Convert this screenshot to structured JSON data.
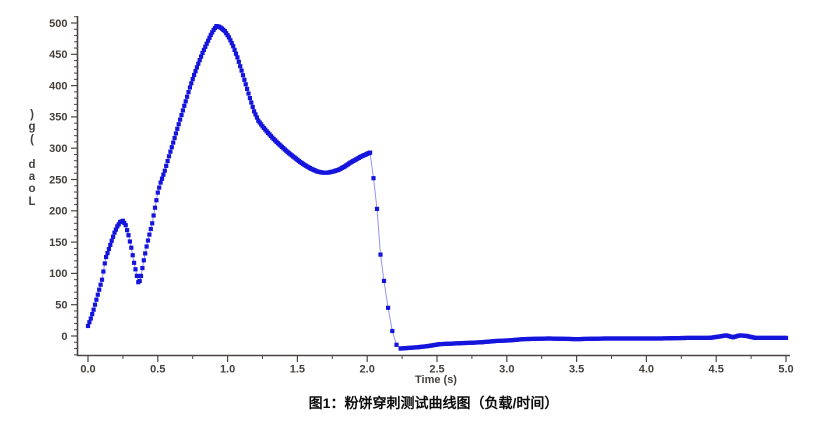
{
  "figure": {
    "caption": "图1：粉饼穿刺测试曲线图（负载/时间）"
  },
  "chart_data": {
    "type": "scatter",
    "title": "",
    "xlabel": "Time (s)",
    "ylabel": "Load (g)",
    "ylabel_stacked_bottom_up": true,
    "xlim": [
      0,
      5
    ],
    "ylim": [
      0,
      500
    ],
    "x_tick_labels": [
      "0.0",
      "0.5",
      "1.0",
      "1.5",
      "2.0",
      "2.5",
      "3.0",
      "3.5",
      "4.0",
      "4.5",
      "5.0"
    ],
    "y_tick_labels": [
      "0",
      "50",
      "100",
      "150",
      "200",
      "250",
      "300",
      "350",
      "400",
      "450",
      "500"
    ],
    "x_minor_step": 0.25,
    "y_minor_step": 10,
    "grid": false,
    "legend": "none",
    "colors": {
      "marker": "#1414dd",
      "line": "#9595ee",
      "axis": "#4a4542",
      "tick_text": "#44403d",
      "caption": "#0d0d0d",
      "background": "#ffffff"
    },
    "series": [
      {
        "name": "load",
        "marker": "square",
        "segments": [
          {
            "dt": 0.01,
            "points": [
              [
                0.0,
                16
              ],
              [
                0.02,
                28
              ],
              [
                0.04,
                42
              ],
              [
                0.06,
                58
              ],
              [
                0.08,
                74
              ],
              [
                0.1,
                90
              ],
              [
                0.11,
                103
              ],
              [
                0.12,
                116
              ],
              [
                0.13,
                126
              ],
              [
                0.15,
                139
              ],
              [
                0.17,
                152
              ],
              [
                0.19,
                165
              ],
              [
                0.21,
                175
              ],
              [
                0.23,
                182
              ],
              [
                0.25,
                184
              ],
              [
                0.27,
                177
              ],
              [
                0.29,
                161
              ],
              [
                0.31,
                141
              ],
              [
                0.33,
                117
              ],
              [
                0.35,
                96
              ],
              [
                0.36,
                86
              ],
              [
                0.37,
                88
              ],
              [
                0.38,
                96
              ],
              [
                0.4,
                121
              ],
              [
                0.42,
                143
              ],
              [
                0.44,
                162
              ],
              [
                0.46,
                180
              ],
              [
                0.48,
                205
              ],
              [
                0.5,
                229
              ],
              [
                0.52,
                245
              ],
              [
                0.55,
                264
              ],
              [
                0.58,
                287
              ],
              [
                0.61,
                309
              ],
              [
                0.64,
                331
              ],
              [
                0.67,
                353
              ],
              [
                0.7,
                375
              ],
              [
                0.73,
                397
              ],
              [
                0.76,
                417
              ],
              [
                0.79,
                435
              ],
              [
                0.82,
                452
              ],
              [
                0.85,
                467
              ],
              [
                0.88,
                481
              ],
              [
                0.9,
                489
              ],
              [
                0.92,
                495
              ],
              [
                0.94,
                494
              ],
              [
                0.96,
                491
              ],
              [
                0.98,
                487
              ],
              [
                1.01,
                477
              ],
              [
                1.04,
                463
              ],
              [
                1.07,
                445
              ],
              [
                1.1,
                424
              ],
              [
                1.13,
                402
              ],
              [
                1.16,
                380
              ],
              [
                1.19,
                359
              ],
              [
                1.22,
                344
              ],
              [
                1.25,
                335
              ],
              [
                1.28,
                327
              ],
              [
                1.32,
                317
              ],
              [
                1.36,
                308
              ],
              [
                1.4,
                300
              ],
              [
                1.44,
                292
              ],
              [
                1.48,
                285
              ],
              [
                1.52,
                278
              ],
              [
                1.56,
                272
              ],
              [
                1.6,
                267
              ],
              [
                1.64,
                263
              ],
              [
                1.68,
                261
              ],
              [
                1.72,
                261
              ],
              [
                1.76,
                263
              ],
              [
                1.8,
                266
              ],
              [
                1.84,
                271
              ],
              [
                1.88,
                277
              ],
              [
                1.92,
                282
              ],
              [
                1.96,
                287
              ],
              [
                2.0,
                291
              ],
              [
                2.02,
                293
              ]
            ]
          },
          {
            "dt": 0.03,
            "points": [
              [
                2.02,
                293
              ],
              [
                2.045,
                252
              ],
              [
                2.07,
                203
              ],
              [
                2.095,
                130
              ],
              [
                2.12,
                88
              ],
              [
                2.15,
                45
              ],
              [
                2.18,
                8
              ],
              [
                2.21,
                -14
              ],
              [
                2.24,
                -20
              ]
            ]
          },
          {
            "dt": 0.012,
            "points": [
              [
                2.24,
                -20
              ],
              [
                2.3,
                -19
              ],
              [
                2.36,
                -18
              ],
              [
                2.44,
                -16
              ],
              [
                2.52,
                -13
              ],
              [
                2.62,
                -12
              ],
              [
                2.72,
                -11
              ],
              [
                2.82,
                -10
              ],
              [
                2.92,
                -8
              ],
              [
                3.02,
                -7
              ],
              [
                3.12,
                -5
              ],
              [
                3.3,
                -4
              ],
              [
                3.5,
                -5
              ],
              [
                3.7,
                -4
              ],
              [
                3.9,
                -4
              ],
              [
                4.1,
                -4
              ],
              [
                4.3,
                -3
              ],
              [
                4.45,
                -3
              ],
              [
                4.52,
                -1
              ],
              [
                4.57,
                1
              ],
              [
                4.62,
                -2
              ],
              [
                4.67,
                1
              ],
              [
                4.72,
                0
              ],
              [
                4.78,
                -3
              ],
              [
                4.86,
                -3
              ],
              [
                4.94,
                -3
              ],
              [
                5.0,
                -3
              ]
            ]
          }
        ]
      }
    ]
  }
}
